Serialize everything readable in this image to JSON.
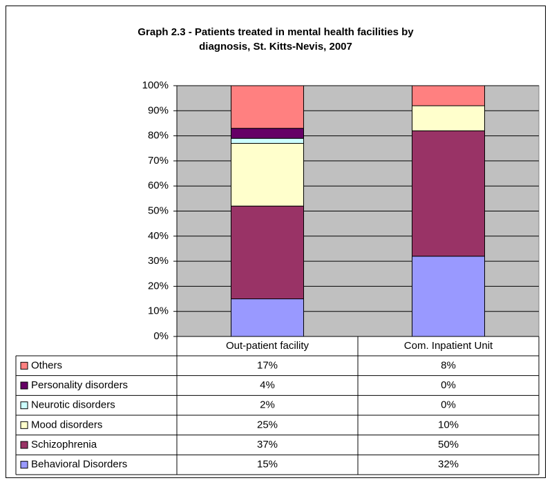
{
  "chart_data": {
    "type": "stacked_bar",
    "title": [
      "Graph 2.3 - Patients treated in mental health facilities by",
      "diagnosis, St. Kitts-Nevis, 2007"
    ],
    "categories": [
      "Out-patient facility",
      "Com. Inpatient Unit"
    ],
    "series": [
      {
        "name": "Behavioral Disorders",
        "color": "#9999ff",
        "values": [
          15,
          32
        ],
        "value_labels": [
          "15%",
          "32%"
        ]
      },
      {
        "name": "Schizophrenia",
        "color": "#993366",
        "values": [
          37,
          50
        ],
        "value_labels": [
          "37%",
          "50%"
        ]
      },
      {
        "name": "Mood disorders",
        "color": "#ffffcc",
        "values": [
          25,
          10
        ],
        "value_labels": [
          "25%",
          "10%"
        ]
      },
      {
        "name": "Neurotic disorders",
        "color": "#ccffff",
        "values": [
          2,
          0
        ],
        "value_labels": [
          "2%",
          "0%"
        ]
      },
      {
        "name": "Personality disorders",
        "color": "#660066",
        "values": [
          4,
          0
        ],
        "value_labels": [
          "4%",
          "0%"
        ]
      },
      {
        "name": "Others",
        "color": "#ff8080",
        "values": [
          17,
          8
        ],
        "value_labels": [
          "17%",
          "8%"
        ]
      }
    ],
    "ylim": [
      0,
      100
    ],
    "yticks": [
      {
        "value": 0,
        "label": "0%"
      },
      {
        "value": 10,
        "label": "10%"
      },
      {
        "value": 20,
        "label": "20%"
      },
      {
        "value": 30,
        "label": "30%"
      },
      {
        "value": 40,
        "label": "40%"
      },
      {
        "value": 50,
        "label": "50%"
      },
      {
        "value": 60,
        "label": "60%"
      },
      {
        "value": 70,
        "label": "70%"
      },
      {
        "value": 80,
        "label": "80%"
      },
      {
        "value": 90,
        "label": "90%"
      },
      {
        "value": 100,
        "label": "100%"
      }
    ],
    "grid": true,
    "plot_background": "#c0c0c0"
  }
}
